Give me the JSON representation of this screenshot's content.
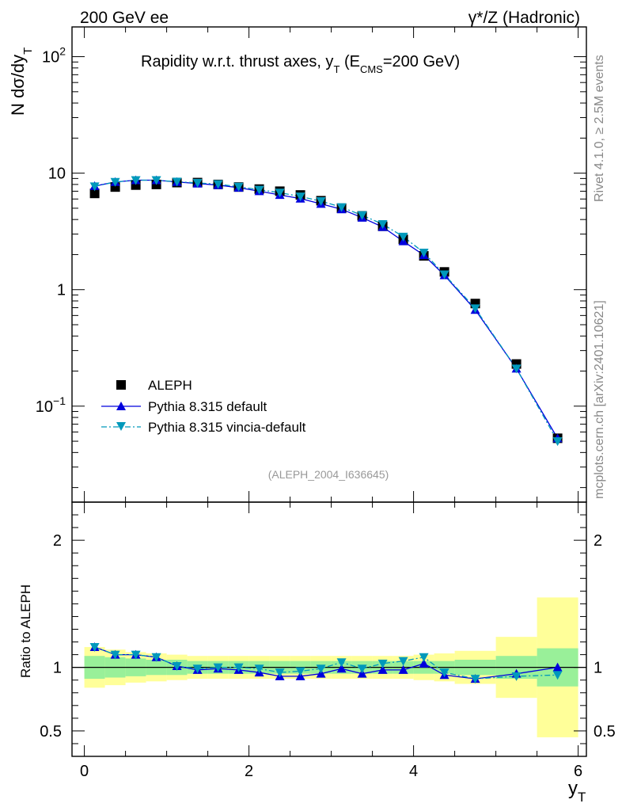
{
  "header": {
    "left": "200 GeV ee",
    "right": "γ*/Z (Hadronic)"
  },
  "side": {
    "top": "Rivet 4.1.0, ≥ 2.5M events",
    "bottom": "mcplots.cern.ch [arXiv:2401.10621]"
  },
  "chart_data": {
    "type": "scatter",
    "title": "Rapidity w.r.t. thrust axes, y_T (E_CMS=200 GeV)",
    "title_parts": {
      "main": "Rapidity w.r.t. thrust axes, y",
      "sub1": "T",
      "mid": " (E",
      "sub2": "CMS",
      "tail": "=200 GeV)"
    },
    "ylabel_parts": {
      "main": "N  dσ/dy",
      "sub": "T"
    },
    "ratio_ylabel": "Ratio to ALEPH",
    "xlabel_parts": {
      "main": "y",
      "sub": "T"
    },
    "watermark": "(ALEPH_2004_I636645)",
    "xlim": [
      -0.15,
      6.1
    ],
    "ylim": [
      0.015,
      180
    ],
    "yscale": "log",
    "ratio_ylim": [
      0.3,
      2.3
    ],
    "x_ticks": [
      "0",
      "2",
      "4",
      "6"
    ],
    "y_ticks": [
      {
        "value": 100,
        "base": "10",
        "exp": "2"
      },
      {
        "value": 10,
        "base": "10",
        "exp": ""
      },
      {
        "value": 1,
        "base": "1",
        "exp": ""
      },
      {
        "value": 0.1,
        "base": "10",
        "exp": "−1"
      }
    ],
    "ratio_ticks": [
      "2",
      "1",
      "0.5"
    ],
    "x": [
      0.125,
      0.375,
      0.625,
      0.875,
      1.125,
      1.375,
      1.625,
      1.875,
      2.125,
      2.375,
      2.625,
      2.875,
      3.125,
      3.375,
      3.625,
      3.875,
      4.125,
      4.375,
      4.75,
      5.25,
      5.75
    ],
    "bin_edges": [
      0,
      0.25,
      0.5,
      0.75,
      1.0,
      1.25,
      1.5,
      1.75,
      2.0,
      2.25,
      2.5,
      2.75,
      3.0,
      3.25,
      3.5,
      3.75,
      4.0,
      4.25,
      4.5,
      5.0,
      5.5,
      6.0
    ],
    "band_inner": [
      0.09,
      0.08,
      0.07,
      0.06,
      0.06,
      0.05,
      0.05,
      0.05,
      0.05,
      0.05,
      0.05,
      0.05,
      0.05,
      0.05,
      0.05,
      0.05,
      0.05,
      0.05,
      0.06,
      0.09,
      0.15
    ],
    "band_outer": [
      0.16,
      0.14,
      0.12,
      0.11,
      0.1,
      0.09,
      0.09,
      0.09,
      0.09,
      0.09,
      0.09,
      0.09,
      0.09,
      0.09,
      0.09,
      0.09,
      0.1,
      0.11,
      0.13,
      0.24,
      0.55
    ],
    "series": [
      {
        "name": "ALEPH",
        "values": [
          6.7,
          7.6,
          7.9,
          8.0,
          8.3,
          8.3,
          8.0,
          7.6,
          7.3,
          7.0,
          6.5,
          5.8,
          5.0,
          4.3,
          3.5,
          2.7,
          1.95,
          1.42,
          0.76,
          0.23,
          0.053
        ],
        "ratio": [
          1,
          1,
          1,
          1,
          1,
          1,
          1,
          1,
          1,
          1,
          1,
          1,
          1,
          1,
          1,
          1,
          1,
          1,
          1,
          1,
          1
        ]
      },
      {
        "name": "Pythia 8.315 default",
        "values": [
          7.75,
          8.4,
          8.7,
          8.7,
          8.4,
          8.15,
          7.9,
          7.5,
          7.0,
          6.5,
          6.05,
          5.45,
          4.9,
          4.15,
          3.45,
          2.6,
          1.98,
          1.33,
          0.67,
          0.21,
          0.053
        ],
        "ratio": [
          1.16,
          1.1,
          1.1,
          1.08,
          1.01,
          0.98,
          0.99,
          0.98,
          0.96,
          0.93,
          0.93,
          0.95,
          0.99,
          0.95,
          0.98,
          0.98,
          1.03,
          0.94,
          0.91,
          0.95,
          1.0
        ]
      },
      {
        "name": "Pythia 8.315 vincia-default",
        "values": [
          7.7,
          8.4,
          8.7,
          8.7,
          8.45,
          8.25,
          8.05,
          7.65,
          7.2,
          6.8,
          6.3,
          5.75,
          5.1,
          4.35,
          3.65,
          2.85,
          2.08,
          1.35,
          0.69,
          0.21,
          0.05
        ],
        "ratio": [
          1.16,
          1.1,
          1.1,
          1.08,
          1.01,
          0.99,
          1.0,
          1.0,
          0.99,
          0.96,
          0.97,
          0.99,
          1.04,
          0.99,
          1.03,
          1.05,
          1.08,
          0.96,
          0.91,
          0.93,
          0.94
        ]
      }
    ]
  },
  "colors": {
    "data": "#000000",
    "default": "#0000dd",
    "vincia": "#0099bb",
    "band_inner": "#99f099",
    "band_outer": "#ffff99"
  }
}
